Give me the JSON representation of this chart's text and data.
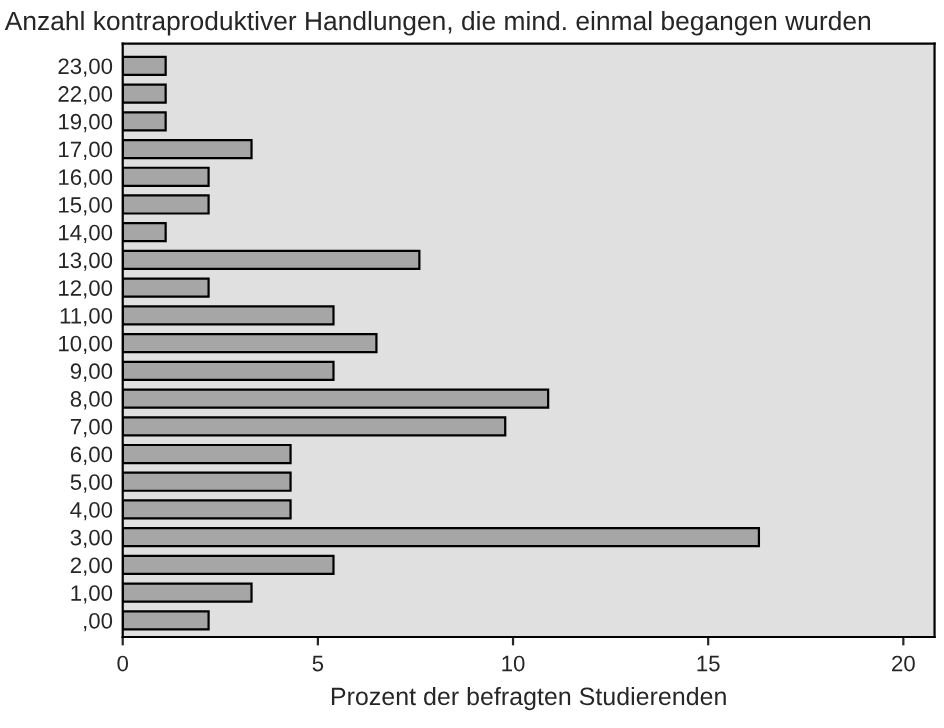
{
  "chart_data": {
    "type": "bar",
    "orientation": "horizontal",
    "title": "Anzahl kontraproduktiver Handlungen, die mind. einmal begangen wurden",
    "xlabel": "Prozent der befragten Studierenden",
    "categories": [
      "23,00",
      "22,00",
      "19,00",
      "17,00",
      "16,00",
      "15,00",
      "14,00",
      "13,00",
      "12,00",
      "11,00",
      "10,00",
      "9,00",
      "8,00",
      "7,00",
      "6,00",
      "5,00",
      "4,00",
      "3,00",
      "2,00",
      "1,00",
      ",00"
    ],
    "values": [
      1.1,
      1.1,
      1.1,
      3.3,
      2.2,
      2.2,
      1.1,
      7.6,
      2.2,
      5.4,
      6.5,
      5.4,
      10.9,
      9.8,
      4.3,
      4.3,
      4.3,
      16.3,
      5.4,
      3.3,
      2.2
    ],
    "color": "#a6a6a6",
    "xlim": [
      0,
      20.8
    ],
    "xticks": [
      0,
      5,
      10,
      15,
      20
    ],
    "grid": false
  }
}
